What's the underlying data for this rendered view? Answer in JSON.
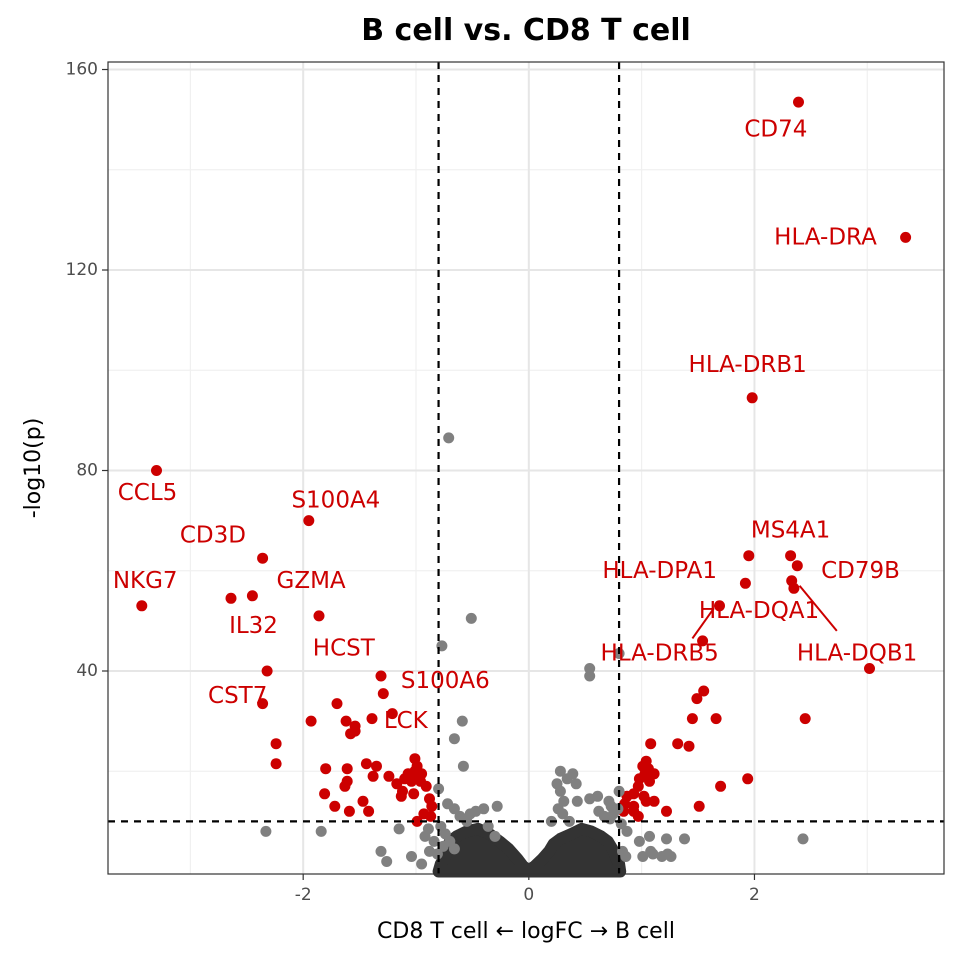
{
  "chart_data": {
    "type": "scatter",
    "title": "B cell vs. CD8 T cell",
    "xlabel": "CD8 T cell ← logFC → B cell",
    "ylabel": "-log10(p)",
    "xlim": [
      -3.73,
      3.68
    ],
    "ylim": [
      -0.5,
      161.5
    ],
    "x_ticks": [
      -2,
      0,
      2
    ],
    "y_ticks": [
      40,
      80,
      120,
      160
    ],
    "x_minor": [
      -3,
      -1,
      1,
      3
    ],
    "y_minor": [
      20,
      60,
      100,
      140
    ],
    "grid": true,
    "legend": "none",
    "thresholds": {
      "logfc": [
        -0.8,
        0.8
      ],
      "neg_log10_p": 10
    },
    "colors": {
      "significant": "#cc0000",
      "nonsignificant": "#808080",
      "background": "#333333",
      "threshold_line": "#000000"
    },
    "series": [
      {
        "group": "significant",
        "points": [
          [
            2.39,
            153.5
          ],
          [
            3.34,
            126.5
          ],
          [
            1.98,
            94.5
          ],
          [
            -3.3,
            80.0
          ],
          [
            -1.95,
            70.0
          ],
          [
            -2.36,
            62.5
          ],
          [
            1.95,
            63.0
          ],
          [
            2.32,
            63.0
          ],
          [
            2.38,
            61.0
          ],
          [
            1.92,
            57.5
          ],
          [
            2.33,
            58.0
          ],
          [
            2.35,
            56.5
          ],
          [
            -2.64,
            54.5
          ],
          [
            -2.45,
            55.0
          ],
          [
            -3.43,
            53.0
          ],
          [
            1.69,
            53.0
          ],
          [
            -1.86,
            51.0
          ],
          [
            1.54,
            46.0
          ],
          [
            3.02,
            40.5
          ],
          [
            -2.32,
            40.0
          ],
          [
            -1.31,
            39.0
          ],
          [
            -1.29,
            35.5
          ],
          [
            -1.7,
            33.5
          ],
          [
            -2.36,
            33.5
          ],
          [
            -1.21,
            31.5
          ],
          [
            -1.62,
            30.0
          ],
          [
            -1.54,
            29.0
          ],
          [
            -1.58,
            27.5
          ],
          [
            -1.54,
            28.0
          ],
          [
            -1.93,
            30.0
          ],
          [
            1.55,
            36.0
          ],
          [
            1.49,
            34.5
          ],
          [
            1.45,
            30.5
          ],
          [
            1.66,
            30.5
          ],
          [
            2.45,
            30.5
          ],
          [
            -2.24,
            25.5
          ],
          [
            -2.24,
            21.5
          ],
          [
            -1.44,
            21.5
          ],
          [
            -1.35,
            21.0
          ],
          [
            -1.61,
            20.5
          ],
          [
            -1.61,
            18.0
          ],
          [
            -1.63,
            17.0
          ],
          [
            -1.38,
            19.0
          ],
          [
            -1.24,
            19.0
          ],
          [
            -1.17,
            17.5
          ],
          [
            -1.1,
            18.5
          ],
          [
            -1.07,
            19.5
          ],
          [
            -1.02,
            19.5
          ],
          [
            -0.99,
            21.0
          ],
          [
            -1.01,
            20.0
          ],
          [
            -0.95,
            19.5
          ],
          [
            -1.04,
            18.0
          ],
          [
            -1.12,
            16.0
          ],
          [
            -1.13,
            15.0
          ],
          [
            -1.02,
            15.5
          ],
          [
            -0.96,
            18.0
          ],
          [
            -0.91,
            17.0
          ],
          [
            -0.88,
            14.5
          ],
          [
            -0.86,
            13.0
          ],
          [
            -1.8,
            20.5
          ],
          [
            -1.81,
            15.5
          ],
          [
            -1.47,
            14.0
          ],
          [
            -1.72,
            13.0
          ],
          [
            -1.42,
            12.0
          ],
          [
            -1.59,
            12.0
          ],
          [
            -0.93,
            11.5
          ],
          [
            -0.99,
            10.0
          ],
          [
            -0.87,
            11.0
          ],
          [
            -1.01,
            22.5
          ],
          [
            -1.39,
            30.5
          ],
          [
            1.08,
            25.5
          ],
          [
            1.04,
            22.0
          ],
          [
            1.01,
            21.0
          ],
          [
            1.06,
            20.5
          ],
          [
            1.03,
            19.5
          ],
          [
            1.11,
            19.5
          ],
          [
            0.98,
            18.5
          ],
          [
            1.07,
            18.0
          ],
          [
            0.97,
            17.0
          ],
          [
            0.93,
            15.5
          ],
          [
            0.87,
            15.0
          ],
          [
            1.02,
            15.0
          ],
          [
            1.04,
            14.0
          ],
          [
            1.11,
            14.0
          ],
          [
            0.85,
            13.5
          ],
          [
            0.93,
            13.0
          ],
          [
            0.84,
            12.0
          ],
          [
            0.93,
            12.0
          ],
          [
            1.22,
            12.0
          ],
          [
            0.97,
            11.0
          ],
          [
            1.32,
            25.5
          ],
          [
            1.42,
            25.0
          ],
          [
            1.7,
            17.0
          ],
          [
            1.94,
            18.5
          ],
          [
            1.51,
            13.0
          ]
        ]
      },
      {
        "group": "nonsignificant",
        "points": [
          [
            -0.71,
            86.5
          ],
          [
            -0.77,
            45.0
          ],
          [
            -0.51,
            50.5
          ],
          [
            -0.59,
            30.0
          ],
          [
            -0.66,
            26.5
          ],
          [
            -0.58,
            21.0
          ],
          [
            -0.8,
            16.5
          ],
          [
            -0.72,
            13.5
          ],
          [
            -0.66,
            12.5
          ],
          [
            -0.61,
            11.0
          ],
          [
            -0.55,
            10.0
          ],
          [
            -0.52,
            11.5
          ],
          [
            -0.47,
            12.0
          ],
          [
            -0.4,
            12.5
          ],
          [
            -0.28,
            13.0
          ],
          [
            -0.78,
            9.0
          ],
          [
            -0.74,
            7.5
          ],
          [
            -0.7,
            6.0
          ],
          [
            -0.76,
            5.0
          ],
          [
            -0.66,
            4.5
          ],
          [
            -0.89,
            8.5
          ],
          [
            -0.92,
            7.0
          ],
          [
            -0.84,
            6.0
          ],
          [
            -0.81,
            3.5
          ],
          [
            -0.88,
            4.0
          ],
          [
            -1.15,
            8.5
          ],
          [
            -1.31,
            4.0
          ],
          [
            -1.26,
            2.0
          ],
          [
            -1.04,
            3.0
          ],
          [
            -0.95,
            1.5
          ],
          [
            -2.33,
            8.0
          ],
          [
            -1.84,
            8.0
          ],
          [
            -0.36,
            9.0
          ],
          [
            -0.3,
            7.0
          ],
          [
            0.54,
            40.5
          ],
          [
            0.54,
            39.0
          ],
          [
            0.8,
            43.5
          ],
          [
            0.28,
            20.0
          ],
          [
            0.34,
            18.5
          ],
          [
            0.39,
            19.5
          ],
          [
            0.42,
            17.5
          ],
          [
            0.25,
            17.5
          ],
          [
            0.28,
            16.0
          ],
          [
            0.31,
            14.0
          ],
          [
            0.43,
            14.0
          ],
          [
            0.54,
            14.5
          ],
          [
            0.61,
            15.0
          ],
          [
            0.71,
            14.0
          ],
          [
            0.73,
            13.0
          ],
          [
            0.62,
            12.0
          ],
          [
            0.67,
            11.0
          ],
          [
            0.75,
            11.5
          ],
          [
            0.72,
            10.5
          ],
          [
            0.79,
            12.5
          ],
          [
            0.8,
            16.0
          ],
          [
            0.26,
            12.5
          ],
          [
            0.3,
            11.5
          ],
          [
            0.82,
            9.5
          ],
          [
            0.87,
            8.0
          ],
          [
            0.98,
            6.0
          ],
          [
            1.07,
            7.0
          ],
          [
            1.22,
            6.5
          ],
          [
            1.38,
            6.5
          ],
          [
            1.08,
            4.0
          ],
          [
            1.1,
            3.5
          ],
          [
            1.18,
            3.0
          ],
          [
            1.01,
            3.0
          ],
          [
            0.83,
            4.0
          ],
          [
            0.86,
            3.0
          ],
          [
            2.43,
            6.5
          ],
          [
            1.26,
            3.0
          ],
          [
            1.23,
            3.5
          ],
          [
            0.2,
            10.0
          ],
          [
            0.36,
            10.0
          ]
        ]
      }
    ],
    "background_cloud": {
      "group": "background",
      "envelope": [
        [
          -0.8,
          0.0
        ],
        [
          -0.78,
          1.5
        ],
        [
          -0.74,
          3.0
        ],
        [
          -0.72,
          4.5
        ],
        [
          -0.7,
          6.0
        ],
        [
          -0.64,
          7.0
        ],
        [
          -0.55,
          8.0
        ],
        [
          -0.45,
          8.5
        ],
        [
          -0.35,
          7.5
        ],
        [
          -0.26,
          6.0
        ],
        [
          -0.18,
          4.5
        ],
        [
          -0.1,
          2.5
        ],
        [
          -0.05,
          1.0
        ],
        [
          0.0,
          0.3
        ],
        [
          0.05,
          1.0
        ],
        [
          0.12,
          2.5
        ],
        [
          0.18,
          4.0
        ],
        [
          0.22,
          5.5
        ],
        [
          0.28,
          6.5
        ],
        [
          0.38,
          7.5
        ],
        [
          0.47,
          8.5
        ],
        [
          0.55,
          8.0
        ],
        [
          0.64,
          7.0
        ],
        [
          0.7,
          6.0
        ],
        [
          0.74,
          4.5
        ],
        [
          0.77,
          3.0
        ],
        [
          0.8,
          1.5
        ],
        [
          0.81,
          0.0
        ]
      ]
    },
    "annotations": [
      {
        "text": "CD74",
        "x": 2.19,
        "y": 148.0
      },
      {
        "text": "HLA-DRA",
        "x": 2.63,
        "y": 126.5
      },
      {
        "text": "HLA-DRB1",
        "x": 1.94,
        "y": 101.0
      },
      {
        "text": "CCL5",
        "x": -3.38,
        "y": 75.5
      },
      {
        "text": "S100A4",
        "x": -1.71,
        "y": 74.0
      },
      {
        "text": "CD3D",
        "x": -2.8,
        "y": 67.0
      },
      {
        "text": "MS4A1",
        "x": 2.32,
        "y": 68.0
      },
      {
        "text": "HLA-DPA1",
        "x": 1.16,
        "y": 60.0
      },
      {
        "text": "CD79B",
        "x": 2.94,
        "y": 60.0
      },
      {
        "text": "NKG7",
        "x": -3.4,
        "y": 58.0
      },
      {
        "text": "GZMA",
        "x": -1.93,
        "y": 58.0
      },
      {
        "text": "HLA-DQA1",
        "x": 2.04,
        "y": 52.0
      },
      {
        "text": "IL32",
        "x": -2.44,
        "y": 49.0
      },
      {
        "text": "HCST",
        "x": -1.64,
        "y": 44.5
      },
      {
        "text": "HLA-DRB5",
        "x": 1.16,
        "y": 43.5
      },
      {
        "text": "HLA-DQB1",
        "x": 2.91,
        "y": 43.5
      },
      {
        "text": "S100A6",
        "x": -0.74,
        "y": 38.0
      },
      {
        "text": "CST7",
        "x": -2.58,
        "y": 35.0
      },
      {
        "text": "LCK",
        "x": -1.09,
        "y": 30.0
      }
    ],
    "connectors": [
      {
        "from": [
          1.45,
          46.5
        ],
        "to": [
          1.64,
          52.5
        ]
      },
      {
        "from": [
          2.4,
          57.0
        ],
        "to": [
          2.73,
          48.0
        ]
      }
    ]
  }
}
